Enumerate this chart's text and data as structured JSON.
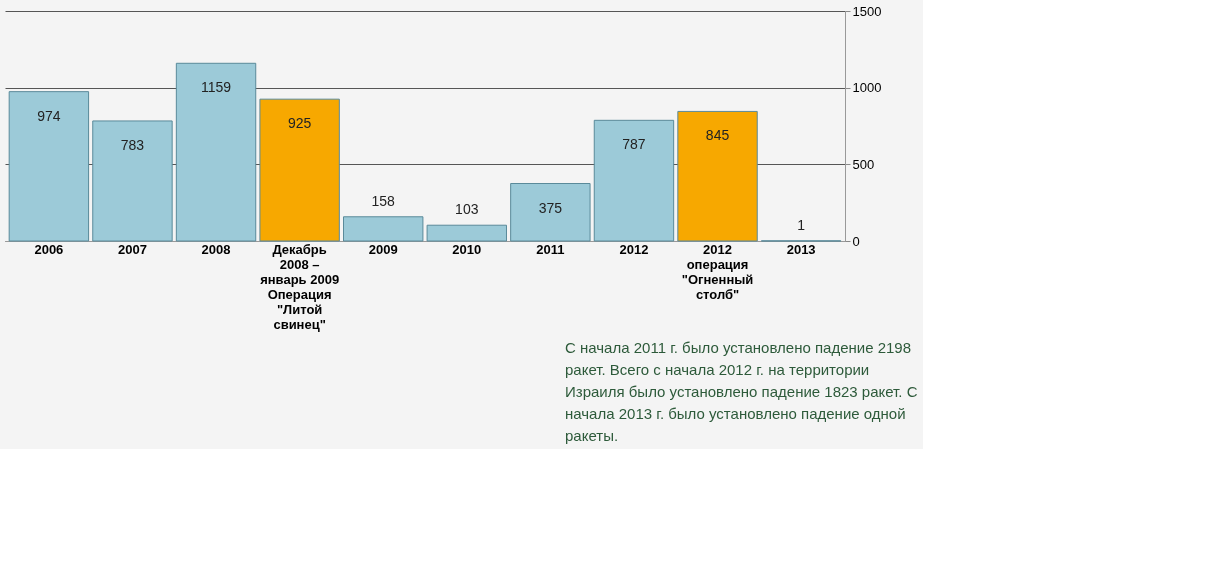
{
  "chart_data": {
    "type": "bar",
    "categories": [
      "2006",
      "2007",
      "2008",
      "Декабрь\n2008 –\nянварь 2009\nОперация\n\"Литой\nсвинец\"",
      "2009",
      "2010",
      "2011",
      "2012",
      "2012\nоперация\n\"Огненный\nстолб\"",
      "2013"
    ],
    "values": [
      974,
      783,
      1159,
      925,
      158,
      103,
      375,
      787,
      845,
      1
    ],
    "colors": [
      "#9ccad8",
      "#9ccad8",
      "#9ccad8",
      "#f7a800",
      "#9ccad8",
      "#9ccad8",
      "#9ccad8",
      "#9ccad8",
      "#f7a800",
      "#9ccad8"
    ],
    "ylim": [
      0,
      1500
    ],
    "yticks": [
      0,
      500,
      1000,
      1500
    ],
    "grid": "y",
    "data_labels": true,
    "annotations": [
      "С начала 2011 г. было установлено падение 2198 ракет. Всего с начала 2012 г. на территории Израиля было установлено падение 1823 ракет. С начала 2013 г. было установлено падение одной ракеты."
    ]
  }
}
